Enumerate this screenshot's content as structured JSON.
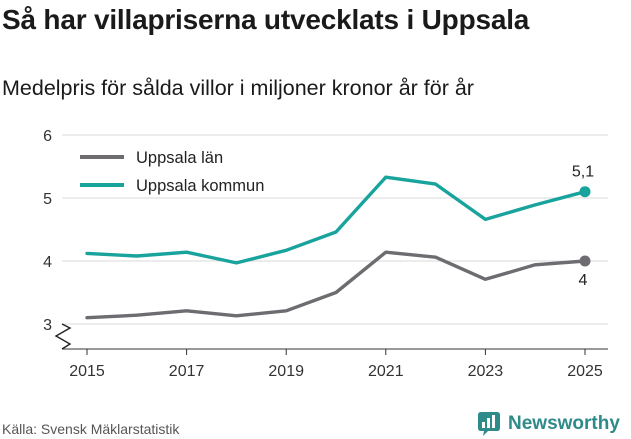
{
  "header": {
    "title": "Så har villapriserna utvecklats i Uppsala",
    "subtitle": "Medelpris för sålda villor i miljoner kronor år för år"
  },
  "footer": {
    "source": "Källa: Svensk Mäklarstatistik",
    "brand": "Newsworthy",
    "brand_icon": "chart-bars-icon"
  },
  "colors": {
    "lan": "#6e6c70",
    "kommun": "#18a39d",
    "grid": "#d9d9d9",
    "axis": "#333333",
    "brand": "#2f8a8a"
  },
  "chart_data": {
    "type": "line",
    "title": "Så har villapriserna utvecklats i Uppsala",
    "subtitle": "Medelpris för sålda villor i miljoner kronor år för år",
    "xlabel": "",
    "ylabel": "",
    "x": [
      2015,
      2016,
      2017,
      2018,
      2019,
      2020,
      2021,
      2022,
      2023,
      2024,
      2025
    ],
    "xticks": [
      "2015",
      "2017",
      "2019",
      "2021",
      "2023",
      "2025"
    ],
    "yticks": [
      "3",
      "4",
      "5",
      "6"
    ],
    "ylim": [
      3,
      6
    ],
    "axis_break": true,
    "grid": true,
    "legend_position": "top-left",
    "series": [
      {
        "name": "Uppsala län",
        "values": [
          3.1,
          3.14,
          3.21,
          3.13,
          3.21,
          3.5,
          4.14,
          4.06,
          3.71,
          3.94,
          4.0
        ],
        "end_label": "4",
        "end_label_position": "below"
      },
      {
        "name": "Uppsala kommun",
        "values": [
          4.12,
          4.08,
          4.14,
          3.97,
          4.17,
          4.46,
          5.33,
          5.22,
          4.66,
          4.89,
          5.1
        ],
        "end_label": "5,1",
        "end_label_position": "above"
      }
    ]
  }
}
